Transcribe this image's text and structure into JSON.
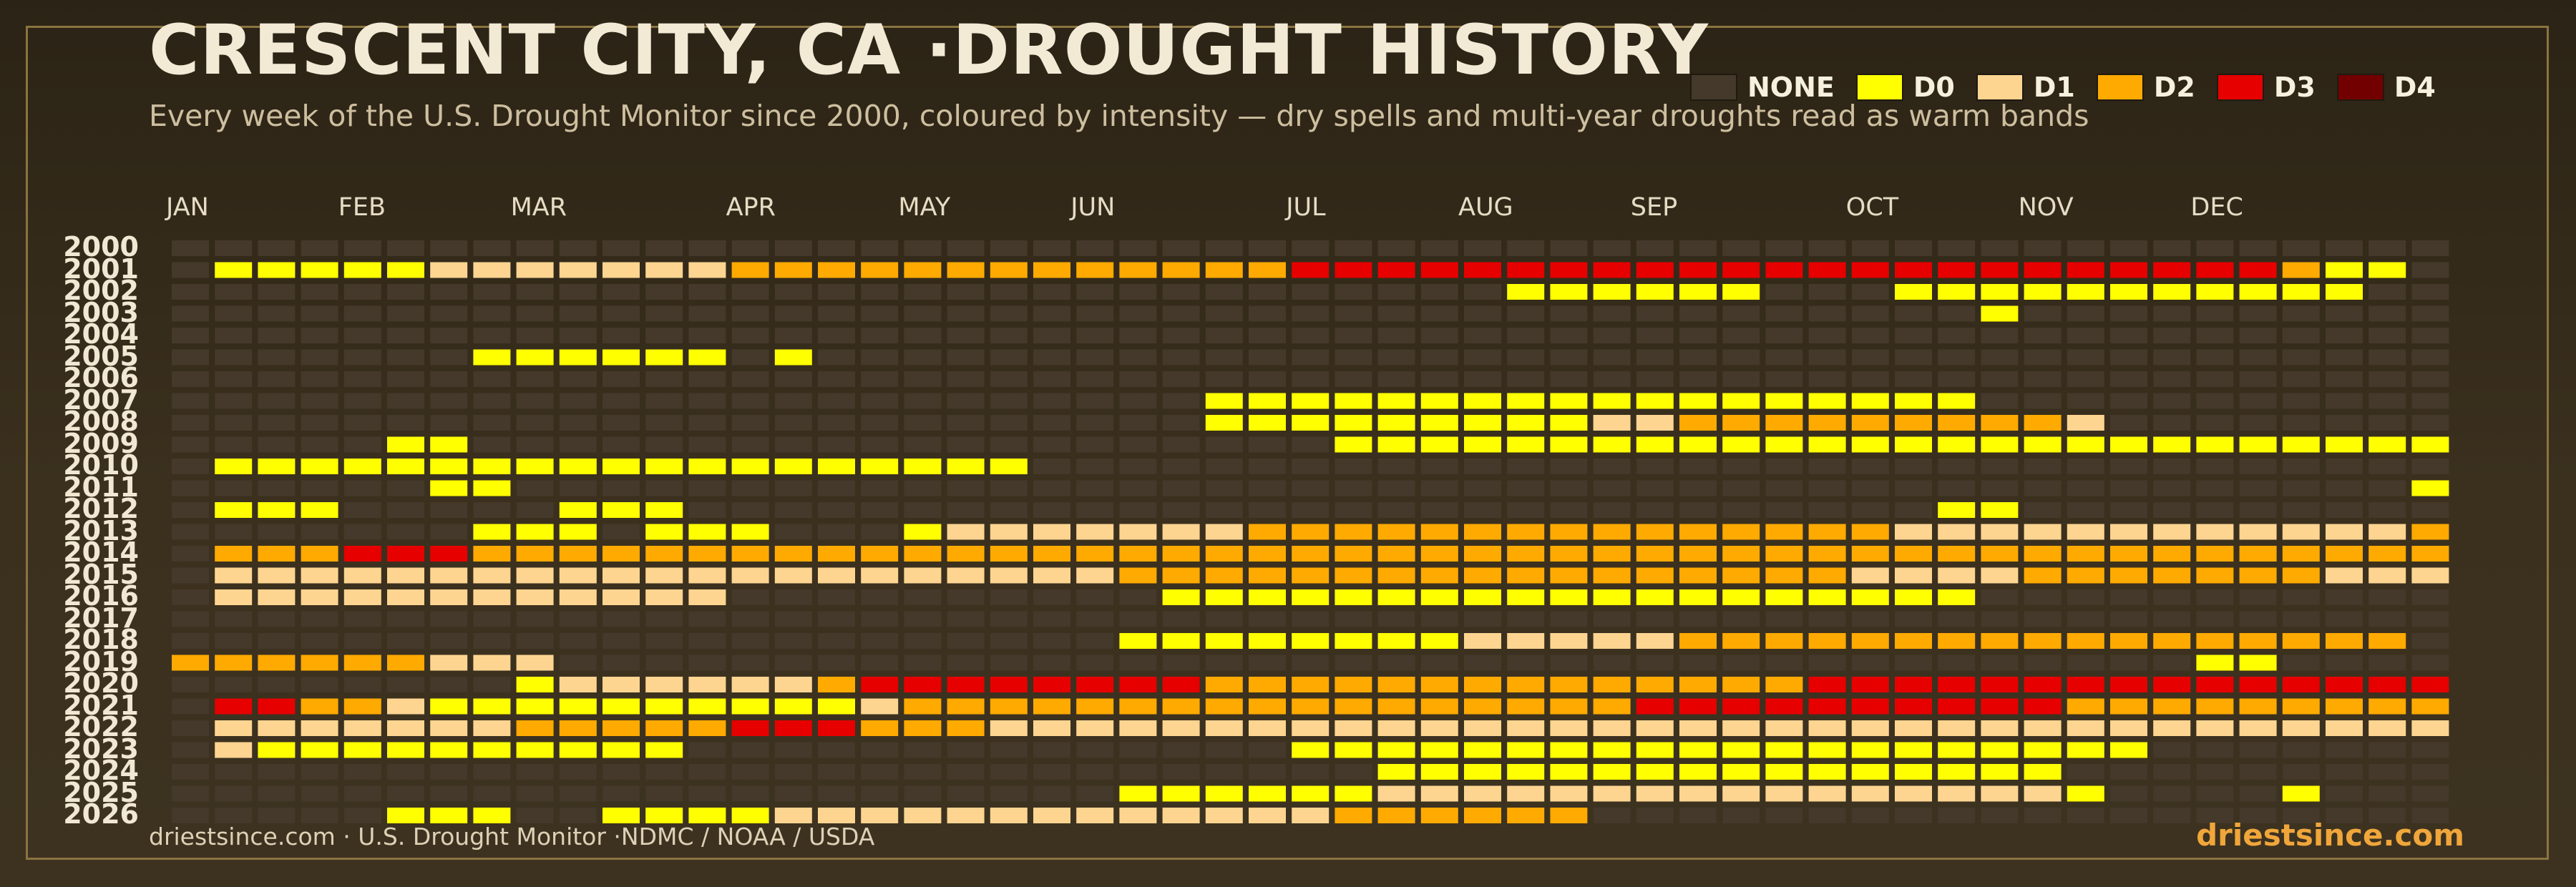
{
  "header": {
    "title": "CRESCENT CITY, CA ·DROUGHT HISTORY",
    "subtitle": "Every week of the U.S. Drought Monitor since 2000, coloured by intensity — dry spells and multi-year droughts read as warm bands"
  },
  "legend": [
    {
      "label": "NONE",
      "color": "#44392a"
    },
    {
      "label": "D0",
      "color": "#ffff00"
    },
    {
      "label": "D1",
      "color": "#fdd591"
    },
    {
      "label": "D2",
      "color": "#ffaa00"
    },
    {
      "label": "D3",
      "color": "#e60000"
    },
    {
      "label": "D4",
      "color": "#730000"
    }
  ],
  "footer": {
    "source": "driestsince.com  · U.S. Drought Monitor ·NDMC / NOAA / USDA",
    "brand": "driestsince.com"
  },
  "chart_data": {
    "type": "heatmap",
    "title": "CRESCENT CITY, CA ·DROUGHT HISTORY",
    "months": [
      {
        "label": "JAN",
        "col": 0
      },
      {
        "label": "FEB",
        "col": 4
      },
      {
        "label": "MAR",
        "col": 8
      },
      {
        "label": "APR",
        "col": 13
      },
      {
        "label": "MAY",
        "col": 17
      },
      {
        "label": "JUN",
        "col": 21
      },
      {
        "label": "JUL",
        "col": 26
      },
      {
        "label": "AUG",
        "col": 30
      },
      {
        "label": "SEP",
        "col": 34
      },
      {
        "label": "OCT",
        "col": 39
      },
      {
        "label": "NOV",
        "col": 43
      },
      {
        "label": "DEC",
        "col": 47
      }
    ],
    "weeks_per_year": 53,
    "category_codes": {
      "0": "NONE",
      "1": "D0",
      "2": "D1",
      "3": "D2",
      "4": "D3",
      "5": "D4"
    },
    "years": [
      {
        "year": "2000",
        "runs": []
      },
      {
        "year": "2001",
        "runs": [
          [
            1,
            5,
            1
          ],
          [
            6,
            12,
            2
          ],
          [
            13,
            25,
            3
          ],
          [
            26,
            48,
            4
          ],
          [
            49,
            49,
            3
          ],
          [
            50,
            51,
            1
          ]
        ]
      },
      {
        "year": "2002",
        "runs": [
          [
            31,
            36,
            1
          ],
          [
            40,
            50,
            1
          ]
        ]
      },
      {
        "year": "2003",
        "runs": [
          [
            42,
            42,
            1
          ]
        ]
      },
      {
        "year": "2004",
        "runs": []
      },
      {
        "year": "2005",
        "runs": [
          [
            7,
            12,
            1
          ],
          [
            14,
            14,
            1
          ]
        ]
      },
      {
        "year": "2006",
        "runs": []
      },
      {
        "year": "2007",
        "runs": [
          [
            24,
            41,
            1
          ]
        ]
      },
      {
        "year": "2008",
        "runs": [
          [
            24,
            32,
            1
          ],
          [
            33,
            34,
            2
          ],
          [
            35,
            43,
            3
          ],
          [
            44,
            44,
            2
          ]
        ]
      },
      {
        "year": "2009",
        "runs": [
          [
            5,
            6,
            1
          ],
          [
            27,
            52,
            1
          ]
        ]
      },
      {
        "year": "2010",
        "runs": [
          [
            1,
            19,
            1
          ]
        ]
      },
      {
        "year": "2011",
        "runs": [
          [
            6,
            7,
            1
          ],
          [
            52,
            52,
            1
          ]
        ]
      },
      {
        "year": "2012",
        "runs": [
          [
            1,
            3,
            1
          ],
          [
            9,
            11,
            1
          ],
          [
            41,
            42,
            1
          ]
        ]
      },
      {
        "year": "2013",
        "runs": [
          [
            7,
            9,
            1
          ],
          [
            11,
            13,
            1
          ],
          [
            17,
            17,
            1
          ],
          [
            18,
            24,
            2
          ],
          [
            25,
            39,
            3
          ],
          [
            40,
            51,
            2
          ],
          [
            52,
            52,
            3
          ]
        ]
      },
      {
        "year": "2014",
        "runs": [
          [
            1,
            3,
            3
          ],
          [
            4,
            6,
            4
          ],
          [
            7,
            52,
            3
          ]
        ]
      },
      {
        "year": "2015",
        "runs": [
          [
            1,
            21,
            2
          ],
          [
            22,
            38,
            3
          ],
          [
            39,
            42,
            2
          ],
          [
            43,
            49,
            3
          ],
          [
            50,
            52,
            2
          ]
        ]
      },
      {
        "year": "2016",
        "runs": [
          [
            1,
            12,
            2
          ],
          [
            23,
            41,
            1
          ]
        ]
      },
      {
        "year": "2017",
        "runs": []
      },
      {
        "year": "2018",
        "runs": [
          [
            22,
            29,
            1
          ],
          [
            30,
            34,
            2
          ],
          [
            35,
            51,
            3
          ]
        ]
      },
      {
        "year": "2019",
        "runs": [
          [
            0,
            5,
            3
          ],
          [
            6,
            8,
            2
          ],
          [
            47,
            48,
            1
          ]
        ]
      },
      {
        "year": "2020",
        "runs": [
          [
            8,
            8,
            1
          ],
          [
            9,
            14,
            2
          ],
          [
            15,
            15,
            3
          ],
          [
            16,
            23,
            4
          ],
          [
            24,
            37,
            3
          ],
          [
            38,
            52,
            4
          ]
        ]
      },
      {
        "year": "2021",
        "runs": [
          [
            1,
            2,
            4
          ],
          [
            3,
            4,
            3
          ],
          [
            5,
            5,
            2
          ],
          [
            6,
            15,
            1
          ],
          [
            16,
            16,
            2
          ],
          [
            17,
            33,
            3
          ],
          [
            34,
            43,
            4
          ],
          [
            44,
            52,
            3
          ]
        ]
      },
      {
        "year": "2022",
        "runs": [
          [
            1,
            7,
            2
          ],
          [
            8,
            12,
            3
          ],
          [
            13,
            15,
            4
          ],
          [
            16,
            18,
            3
          ],
          [
            19,
            52,
            2
          ]
        ]
      },
      {
        "year": "2023",
        "runs": [
          [
            1,
            1,
            2
          ],
          [
            2,
            11,
            1
          ],
          [
            26,
            45,
            1
          ]
        ]
      },
      {
        "year": "2024",
        "runs": [
          [
            28,
            43,
            1
          ]
        ]
      },
      {
        "year": "2025",
        "runs": [
          [
            22,
            27,
            1
          ],
          [
            28,
            43,
            2
          ],
          [
            44,
            44,
            1
          ],
          [
            49,
            49,
            1
          ]
        ]
      },
      {
        "year": "2026",
        "runs": [
          [
            5,
            7,
            1
          ],
          [
            10,
            13,
            1
          ],
          [
            14,
            26,
            2
          ],
          [
            27,
            32,
            3
          ]
        ]
      }
    ]
  }
}
